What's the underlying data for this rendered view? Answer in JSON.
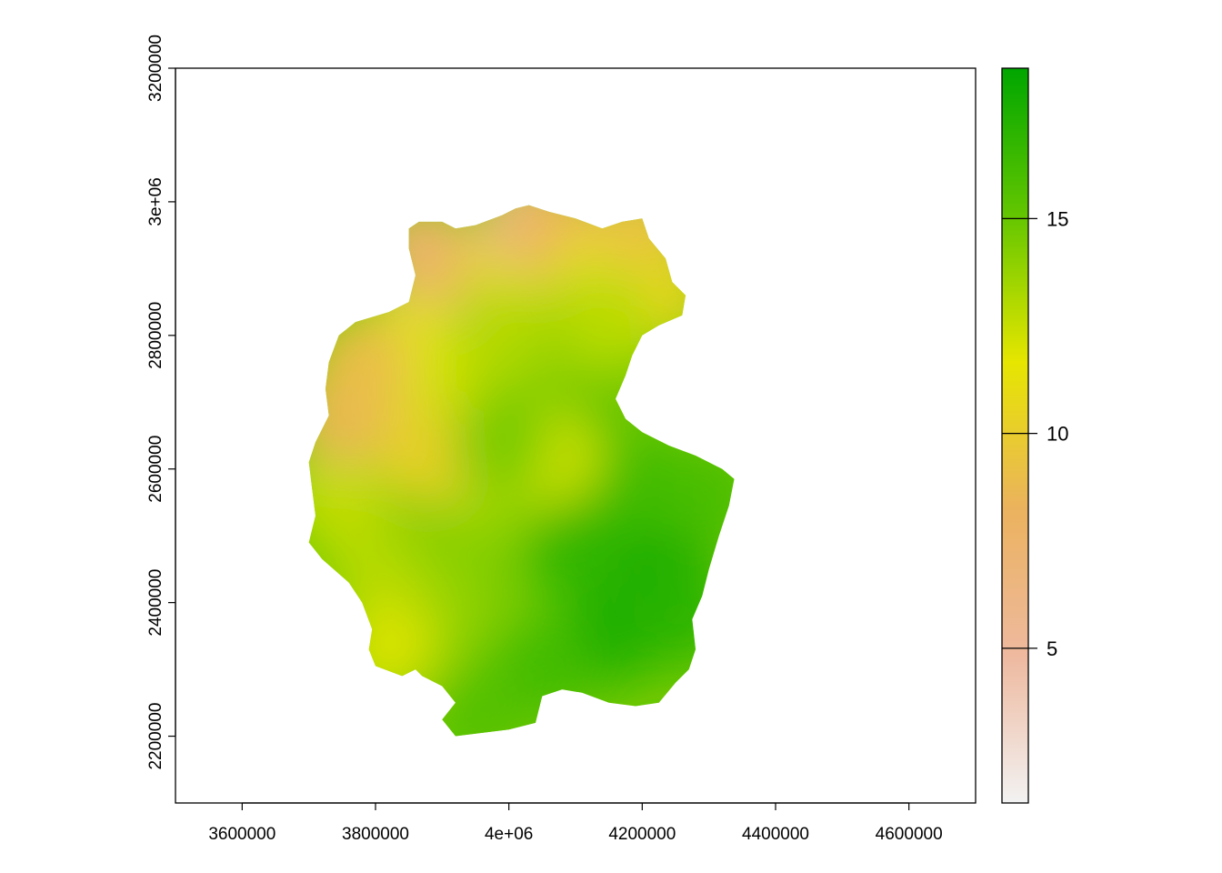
{
  "chart_data": {
    "type": "heatmap",
    "title": "",
    "xlabel": "",
    "ylabel": "",
    "xlim": [
      3500000,
      4700000
    ],
    "ylim": [
      2100000,
      3200000
    ],
    "x_ticks": [
      {
        "value": 3600000,
        "label": "3600000"
      },
      {
        "value": 3800000,
        "label": "3800000"
      },
      {
        "value": 4000000,
        "label": "4e+06"
      },
      {
        "value": 4200000,
        "label": "4200000"
      },
      {
        "value": 4400000,
        "label": "4400000"
      },
      {
        "value": 4600000,
        "label": "4600000"
      }
    ],
    "y_ticks": [
      {
        "value": 2200000,
        "label": "2200000"
      },
      {
        "value": 2400000,
        "label": "2400000"
      },
      {
        "value": 2600000,
        "label": "2600000"
      },
      {
        "value": 2800000,
        "label": "2800000"
      },
      {
        "value": 3000000,
        "label": "3e+06"
      },
      {
        "value": 3200000,
        "label": "3200000"
      }
    ],
    "legend": {
      "placement": "right",
      "range": [
        1.4,
        18.5
      ],
      "ticks": [
        {
          "value": 5,
          "label": "5"
        },
        {
          "value": 10,
          "label": "10"
        },
        {
          "value": 15,
          "label": "15"
        }
      ],
      "colors": [
        "#f2f2f2",
        "#eeb99f",
        "#ebb25e",
        "#e6e600",
        "#63c600",
        "#00a600"
      ]
    },
    "raster": {
      "outline": [
        [
          3865000,
          2970000
        ],
        [
          3900000,
          2970000
        ],
        [
          3920000,
          2960000
        ],
        [
          3950000,
          2965000
        ],
        [
          3990000,
          2980000
        ],
        [
          4010000,
          2990000
        ],
        [
          4030000,
          2995000
        ],
        [
          4060000,
          2985000
        ],
        [
          4100000,
          2975000
        ],
        [
          4140000,
          2960000
        ],
        [
          4170000,
          2970000
        ],
        [
          4200000,
          2975000
        ],
        [
          4210000,
          2945000
        ],
        [
          4235000,
          2915000
        ],
        [
          4245000,
          2880000
        ],
        [
          4265000,
          2860000
        ],
        [
          4260000,
          2830000
        ],
        [
          4225000,
          2815000
        ],
        [
          4200000,
          2800000
        ],
        [
          4185000,
          2770000
        ],
        [
          4175000,
          2740000
        ],
        [
          4160000,
          2705000
        ],
        [
          4175000,
          2675000
        ],
        [
          4200000,
          2655000
        ],
        [
          4240000,
          2635000
        ],
        [
          4280000,
          2620000
        ],
        [
          4310000,
          2605000
        ],
        [
          4320000,
          2600000
        ],
        [
          4338000,
          2585000
        ],
        [
          4330000,
          2545000
        ],
        [
          4315000,
          2500000
        ],
        [
          4300000,
          2450000
        ],
        [
          4290000,
          2410000
        ],
        [
          4275000,
          2375000
        ],
        [
          4280000,
          2330000
        ],
        [
          4270000,
          2300000
        ],
        [
          4250000,
          2280000
        ],
        [
          4225000,
          2250000
        ],
        [
          4190000,
          2245000
        ],
        [
          4150000,
          2250000
        ],
        [
          4110000,
          2265000
        ],
        [
          4080000,
          2270000
        ],
        [
          4050000,
          2260000
        ],
        [
          4040000,
          2220000
        ],
        [
          4000000,
          2210000
        ],
        [
          3960000,
          2205000
        ],
        [
          3920000,
          2200000
        ],
        [
          3900000,
          2225000
        ],
        [
          3920000,
          2250000
        ],
        [
          3900000,
          2275000
        ],
        [
          3870000,
          2290000
        ],
        [
          3860000,
          2300000
        ],
        [
          3840000,
          2290000
        ],
        [
          3800000,
          2305000
        ],
        [
          3790000,
          2330000
        ],
        [
          3795000,
          2360000
        ],
        [
          3780000,
          2400000
        ],
        [
          3760000,
          2430000
        ],
        [
          3720000,
          2465000
        ],
        [
          3700000,
          2490000
        ],
        [
          3710000,
          2530000
        ],
        [
          3705000,
          2570000
        ],
        [
          3700000,
          2610000
        ],
        [
          3710000,
          2640000
        ],
        [
          3730000,
          2680000
        ],
        [
          3725000,
          2720000
        ],
        [
          3730000,
          2760000
        ],
        [
          3745000,
          2800000
        ],
        [
          3770000,
          2820000
        ],
        [
          3820000,
          2835000
        ],
        [
          3850000,
          2850000
        ],
        [
          3860000,
          2890000
        ],
        [
          3850000,
          2930000
        ],
        [
          3850000,
          2960000
        ]
      ],
      "cells": [
        {
          "x": 4180000,
          "y": 2420000,
          "value": 18.3
        },
        {
          "x": 4240000,
          "y": 2480000,
          "value": 17.8
        },
        {
          "x": 4150000,
          "y": 2350000,
          "value": 17.5
        },
        {
          "x": 4260000,
          "y": 2380000,
          "value": 17.0
        },
        {
          "x": 4100000,
          "y": 2480000,
          "value": 16.8
        },
        {
          "x": 4050000,
          "y": 2300000,
          "value": 16.2
        },
        {
          "x": 3950000,
          "y": 2230000,
          "value": 15.6
        },
        {
          "x": 4200000,
          "y": 2580000,
          "value": 16.4
        },
        {
          "x": 4300000,
          "y": 2560000,
          "value": 16.0
        },
        {
          "x": 4030000,
          "y": 2700000,
          "value": 15.0
        },
        {
          "x": 4060000,
          "y": 2780000,
          "value": 14.2
        },
        {
          "x": 4120000,
          "y": 2650000,
          "value": 15.5
        },
        {
          "x": 3900000,
          "y": 2400000,
          "value": 13.8
        },
        {
          "x": 3800000,
          "y": 2450000,
          "value": 13.0
        },
        {
          "x": 3820000,
          "y": 2330000,
          "value": 12.0
        },
        {
          "x": 3740000,
          "y": 2560000,
          "value": 12.6
        },
        {
          "x": 3960000,
          "y": 2560000,
          "value": 13.6
        },
        {
          "x": 3900000,
          "y": 2680000,
          "value": 12.4
        },
        {
          "x": 3850000,
          "y": 2790000,
          "value": 11.8
        },
        {
          "x": 3780000,
          "y": 2740000,
          "value": 11.2
        },
        {
          "x": 3750000,
          "y": 2680000,
          "value": 8.6
        },
        {
          "x": 3780000,
          "y": 2760000,
          "value": 9.0
        },
        {
          "x": 3880000,
          "y": 2620000,
          "value": 10.2
        },
        {
          "x": 3900000,
          "y": 2880000,
          "value": 11.5
        },
        {
          "x": 3870000,
          "y": 2930000,
          "value": 7.5
        },
        {
          "x": 3960000,
          "y": 2870000,
          "value": 8.2
        },
        {
          "x": 4000000,
          "y": 2900000,
          "value": 10.8
        },
        {
          "x": 4030000,
          "y": 2975000,
          "value": 6.0
        },
        {
          "x": 4080000,
          "y": 2960000,
          "value": 8.5
        },
        {
          "x": 4150000,
          "y": 2900000,
          "value": 11.4
        },
        {
          "x": 4200000,
          "y": 2960000,
          "value": 9.2
        },
        {
          "x": 4230000,
          "y": 2860000,
          "value": 10.5
        },
        {
          "x": 4150000,
          "y": 2820000,
          "value": 12.8
        },
        {
          "x": 3980000,
          "y": 2800000,
          "value": 13.0
        },
        {
          "x": 4060000,
          "y": 2620000,
          "value": 12.2
        },
        {
          "x": 3990000,
          "y": 2640000,
          "value": 14.5
        }
      ]
    }
  }
}
